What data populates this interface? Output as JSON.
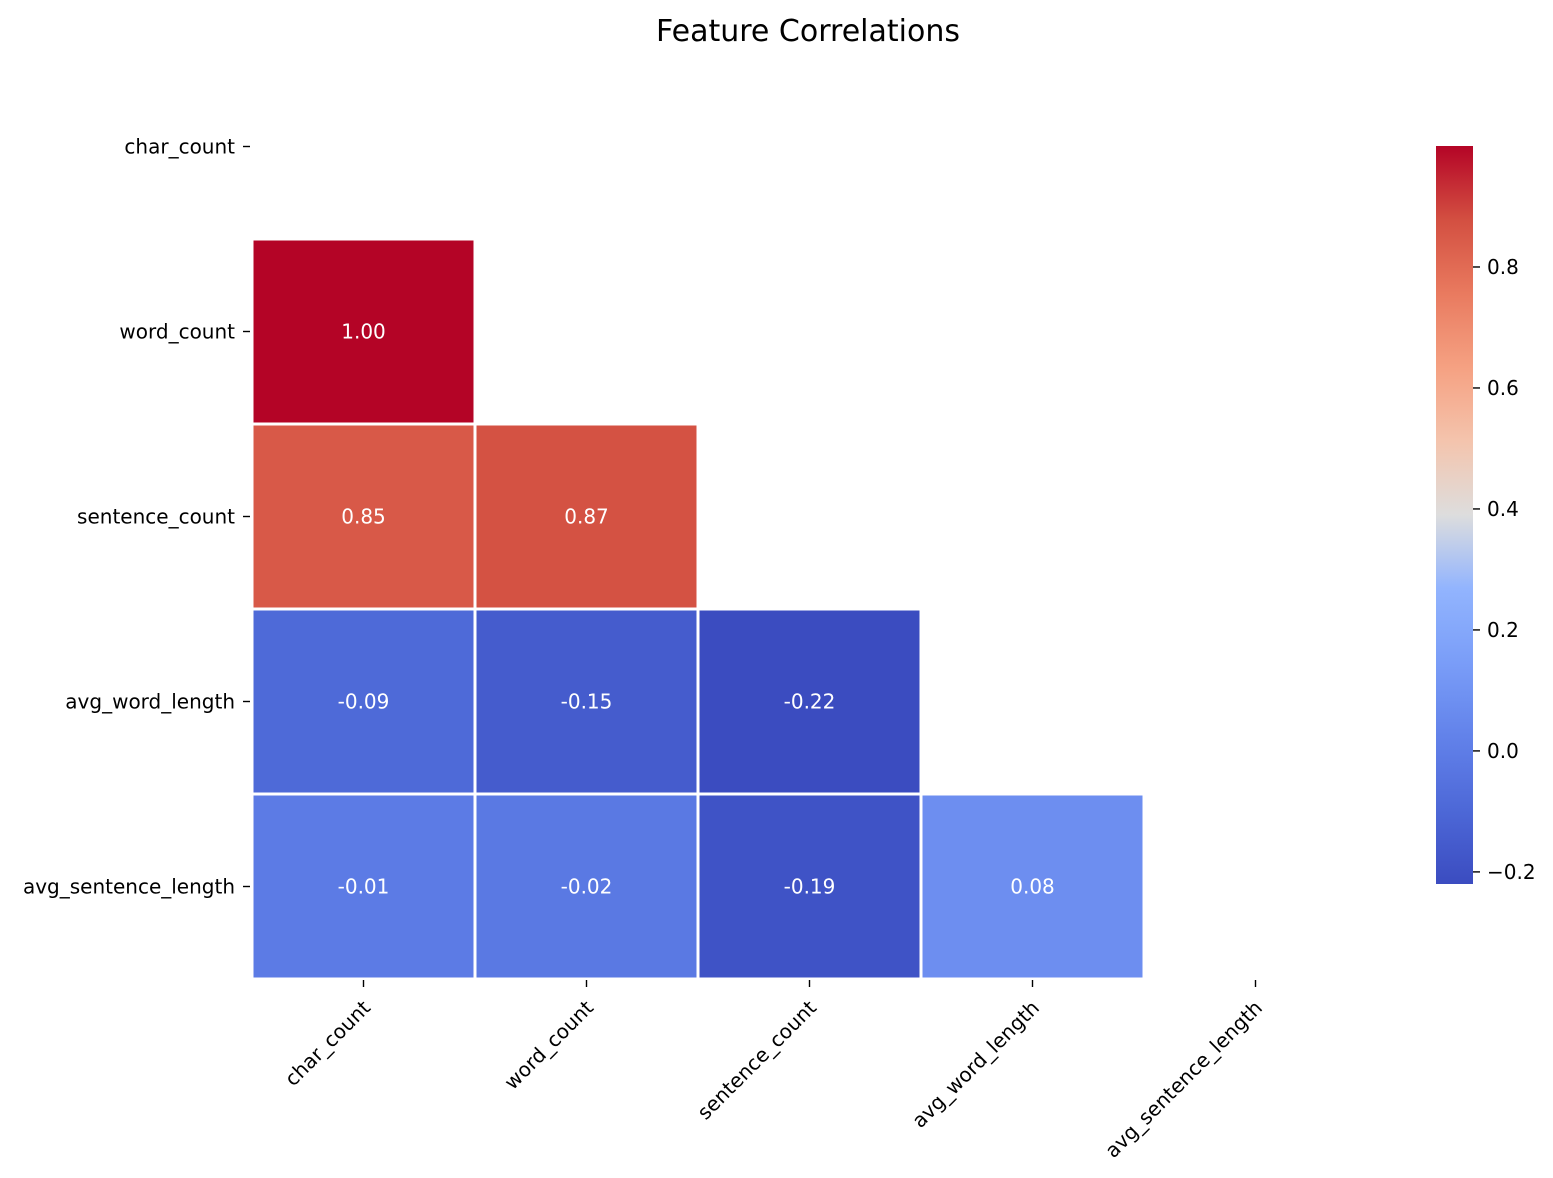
{
  "chart_data": {
    "type": "heatmap",
    "title": "Feature Correlations",
    "rows": [
      "char_count",
      "word_count",
      "sentence_count",
      "avg_word_length",
      "avg_sentence_length"
    ],
    "columns": [
      "char_count",
      "word_count",
      "sentence_count",
      "avg_word_length",
      "avg_sentence_length"
    ],
    "values": [
      [
        null,
        null,
        null,
        null,
        null
      ],
      [
        1.0,
        null,
        null,
        null,
        null
      ],
      [
        0.85,
        0.87,
        null,
        null,
        null
      ],
      [
        -0.09,
        -0.15,
        -0.22,
        null,
        null
      ],
      [
        -0.01,
        -0.02,
        -0.19,
        0.08,
        null
      ]
    ],
    "mask": "upper-triangle-including-diagonal",
    "colormap": "coolwarm",
    "colorbar": {
      "range": [
        -0.22,
        1.0
      ],
      "ticks": [
        -0.2,
        0.0,
        0.2,
        0.4,
        0.6,
        0.8
      ],
      "tick_labels": [
        "−0.2",
        "0.0",
        "0.2",
        "0.4",
        "0.6",
        "0.8"
      ],
      "placement": "right"
    },
    "xlabel": "",
    "ylabel": "",
    "grid": false
  }
}
